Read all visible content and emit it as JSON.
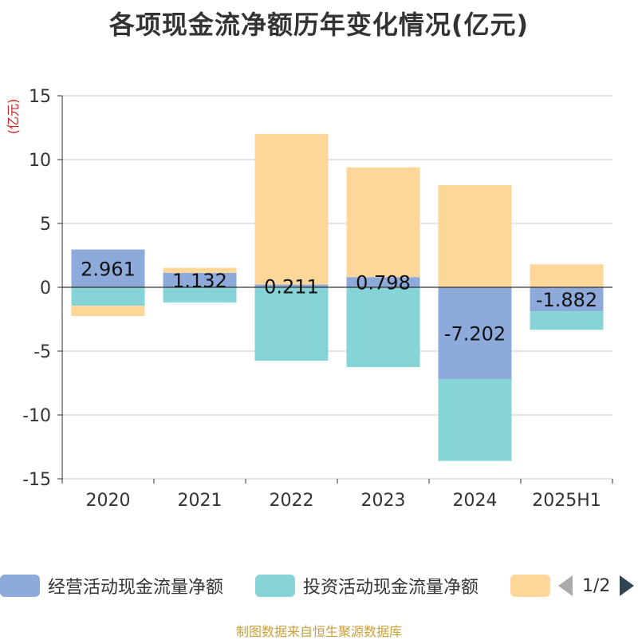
{
  "chart_data": {
    "type": "bar",
    "stacked": true,
    "title": "各项现金流净额历年变化情况(亿元)",
    "unit_label": "(亿元)",
    "categories": [
      "2020",
      "2021",
      "2022",
      "2023",
      "2024",
      "2025H1"
    ],
    "ylim": [
      -15,
      15
    ],
    "yticks": [
      15,
      10,
      5,
      0,
      -5,
      -10,
      -15
    ],
    "grid": true,
    "series": [
      {
        "name": "经营活动现金流量净额",
        "color": "#8eaadb",
        "values": [
          2.961,
          1.132,
          0.211,
          0.798,
          -7.202,
          -1.882
        ],
        "labels": [
          "2.961",
          "1.132",
          "0.211",
          "0.798",
          "-7.202",
          "-1.882"
        ]
      },
      {
        "name": "投资活动现金流量净额",
        "color": "#86d4d8",
        "values": [
          -1.45,
          -1.2,
          -5.75,
          -6.25,
          -6.4,
          -1.45
        ]
      },
      {
        "name": "",
        "color": "#fdd79a",
        "values": [
          -0.8,
          0.4,
          11.8,
          8.6,
          8.0,
          1.8
        ]
      }
    ]
  },
  "legend": {
    "items": [
      {
        "label": "经营活动现金流量净额",
        "color": "#8eaadb"
      },
      {
        "label": "投资活动现金流量净额",
        "color": "#86d4d8"
      },
      {
        "label": "",
        "color": "#fdd79a"
      }
    ],
    "page": "1/2"
  },
  "source": "制图数据来自恒生聚源数据库"
}
